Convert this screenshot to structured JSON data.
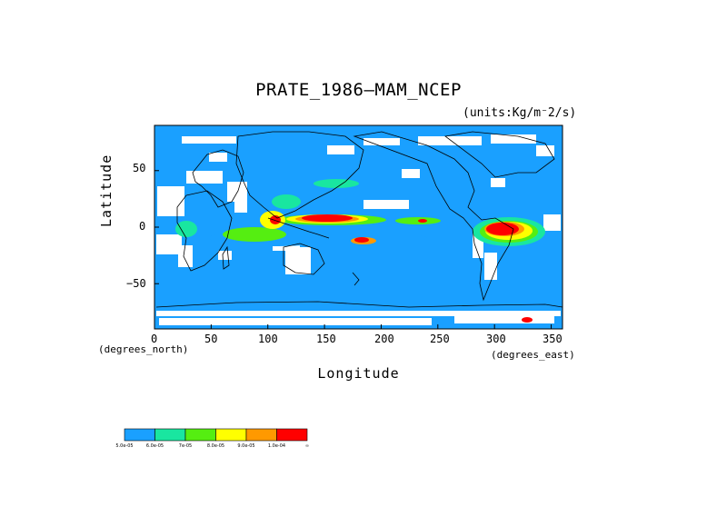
{
  "title": "PRATE_1986—MAM_NCEP",
  "units": "(units:Kg/m⁻2/s)",
  "axes": {
    "ylabel": "Latitude",
    "xlabel": "Longitude",
    "y_ticks": [
      "50",
      "0",
      "−50"
    ],
    "x_ticks": [
      "0",
      "50",
      "100",
      "150",
      "200",
      "250",
      "300",
      "350"
    ],
    "y_unit": "(degrees_north)",
    "x_unit": "(degrees_east)",
    "lon_range": [
      0,
      360
    ],
    "lat_range": [
      -90,
      90
    ]
  },
  "colorbar": {
    "colors": [
      "#1aa0ff",
      "#19e6a0",
      "#55ee11",
      "#ffff00",
      "#ff9900",
      "#ff0000"
    ],
    "labels": [
      "5.0e-05",
      "6.0e-05",
      "7e-05",
      "8.0e-05",
      "9.0e-05",
      "1.0e-04",
      "∞"
    ]
  },
  "legend_colors": {
    "background": "#1aa0ff",
    "missing": "#ffffff",
    "coast": "#000000"
  }
}
